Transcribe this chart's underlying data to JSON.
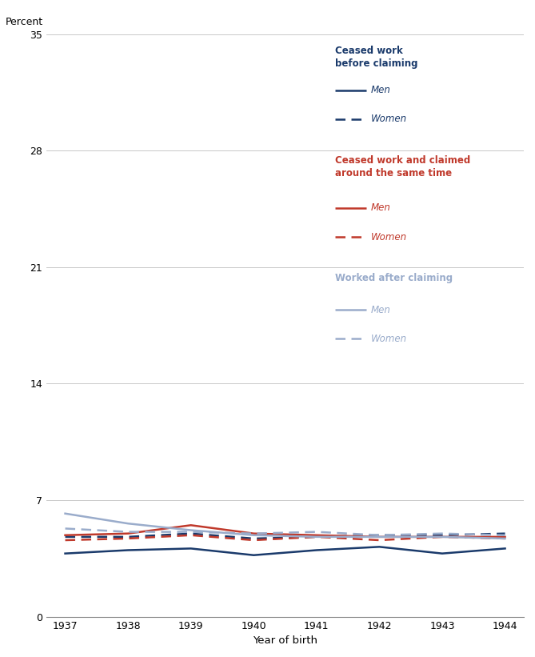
{
  "years": [
    1937,
    1938,
    1939,
    1940,
    1941,
    1942,
    1943,
    1944
  ],
  "ceased_before_men": [
    3.8,
    4.0,
    4.1,
    3.7,
    4.0,
    4.2,
    3.8,
    4.1
  ],
  "ceased_before_women": [
    4.8,
    4.8,
    5.0,
    4.7,
    4.8,
    4.9,
    4.9,
    5.0
  ],
  "ceased_same_men": [
    4.9,
    5.0,
    5.5,
    5.0,
    4.9,
    4.8,
    4.8,
    4.8
  ],
  "ceased_same_women": [
    4.6,
    4.7,
    4.9,
    4.6,
    4.8,
    4.6,
    4.8,
    4.7
  ],
  "worked_after_men": [
    6.2,
    5.6,
    5.2,
    4.9,
    4.8,
    4.8,
    4.8,
    4.7
  ],
  "worked_after_women": [
    5.3,
    5.1,
    5.1,
    5.0,
    5.1,
    4.9,
    5.0,
    4.9
  ],
  "color_navy": "#1a3a6b",
  "color_red": "#c0392b",
  "color_gray": "#9aaccb",
  "ylabel": "Percent",
  "xlabel": "Year of birth",
  "yticks": [
    0,
    7,
    14,
    21,
    28,
    35
  ],
  "ylim": [
    0,
    35
  ],
  "xlim_min": 1937,
  "xlim_max": 1944,
  "legend_group1_title": "Ceased work\nbefore claiming",
  "legend_group1_color": "#1a3a6b",
  "legend_group2_title": "Ceased work and claimed\naround the same time",
  "legend_group2_color": "#c0392b",
  "legend_group3_title": "Worked after claiming",
  "legend_group3_color": "#9aaccb",
  "legend_men": "Men",
  "legend_women": "Women",
  "line_lw": 1.8,
  "dash_pattern": [
    5,
    3
  ]
}
